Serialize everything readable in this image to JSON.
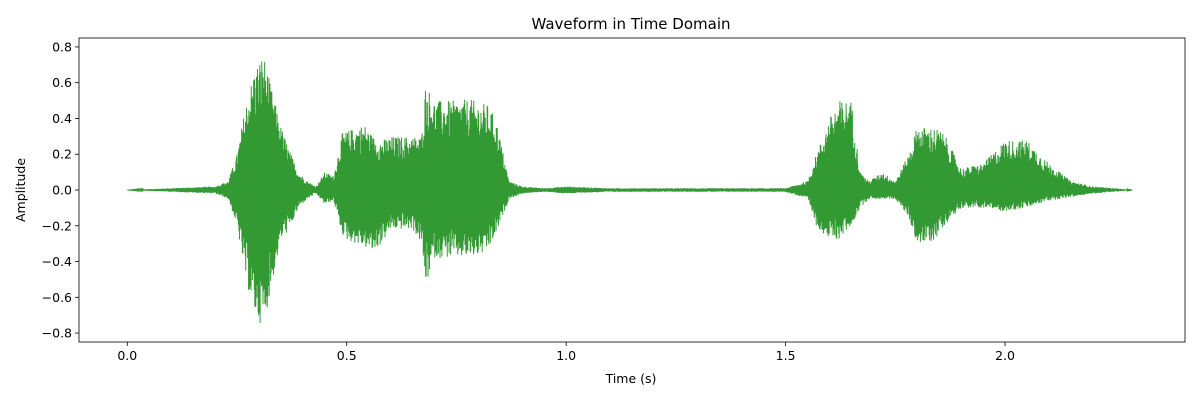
{
  "chart_data": {
    "type": "line",
    "title": "Waveform in Time Domain",
    "xlabel": "Time (s)",
    "ylabel": "Amplitude",
    "xlim": [
      -0.11,
      2.41
    ],
    "ylim": [
      -0.85,
      0.85
    ],
    "x_ticks": [
      0.0,
      0.5,
      1.0,
      1.5,
      2.0
    ],
    "x_tick_labels": [
      "0.0",
      "0.5",
      "1.0",
      "1.5",
      "2.0"
    ],
    "y_ticks": [
      -0.8,
      -0.6,
      -0.4,
      -0.2,
      0.0,
      0.2,
      0.4,
      0.6,
      0.8
    ],
    "y_tick_labels": [
      "−0.8",
      "−0.6",
      "−0.4",
      "−0.2",
      "0.0",
      "0.2",
      "0.4",
      "0.6",
      "0.8"
    ],
    "grid": false,
    "legend": "none",
    "line_color": "#339933",
    "series": [
      {
        "x": [
          0.0,
          0.1,
          0.2,
          0.23,
          0.25,
          0.27,
          0.29,
          0.31,
          0.33,
          0.35,
          0.37,
          0.39,
          0.41,
          0.43,
          0.45,
          0.47,
          0.49,
          0.5,
          0.52,
          0.54,
          0.56,
          0.58,
          0.6,
          0.62,
          0.65,
          0.67,
          0.68,
          0.7,
          0.72,
          0.75,
          0.78,
          0.8,
          0.82,
          0.84,
          0.87,
          0.9,
          0.95,
          1.0,
          1.1,
          1.2,
          1.3,
          1.4,
          1.5,
          1.55,
          1.57,
          1.6,
          1.62,
          1.65,
          1.67,
          1.69,
          1.72,
          1.75,
          1.78,
          1.8,
          1.82,
          1.84,
          1.86,
          1.9,
          1.95,
          2.0,
          2.05,
          2.1,
          2.15,
          2.2,
          2.25,
          2.29
        ],
        "envelope_max": [
          0.0,
          0.01,
          0.02,
          0.05,
          0.2,
          0.48,
          0.68,
          0.77,
          0.55,
          0.36,
          0.22,
          0.1,
          0.05,
          0.02,
          0.1,
          0.08,
          0.32,
          0.33,
          0.35,
          0.37,
          0.3,
          0.28,
          0.3,
          0.3,
          0.3,
          0.3,
          0.6,
          0.5,
          0.5,
          0.5,
          0.51,
          0.49,
          0.48,
          0.4,
          0.05,
          0.02,
          0.01,
          0.02,
          0.01,
          0.01,
          0.01,
          0.01,
          0.01,
          0.05,
          0.2,
          0.4,
          0.5,
          0.5,
          0.1,
          0.05,
          0.1,
          0.05,
          0.2,
          0.36,
          0.35,
          0.35,
          0.32,
          0.12,
          0.15,
          0.28,
          0.28,
          0.15,
          0.05,
          0.02,
          0.01,
          0.0
        ],
        "envelope_min": [
          0.0,
          -0.01,
          -0.02,
          -0.05,
          -0.2,
          -0.5,
          -0.7,
          -0.77,
          -0.52,
          -0.28,
          -0.22,
          -0.1,
          -0.05,
          -0.02,
          -0.08,
          -0.06,
          -0.25,
          -0.28,
          -0.3,
          -0.32,
          -0.35,
          -0.3,
          -0.22,
          -0.22,
          -0.22,
          -0.3,
          -0.54,
          -0.38,
          -0.38,
          -0.38,
          -0.38,
          -0.37,
          -0.35,
          -0.25,
          -0.05,
          -0.02,
          -0.01,
          -0.02,
          -0.01,
          -0.01,
          -0.01,
          -0.01,
          -0.01,
          -0.05,
          -0.2,
          -0.28,
          -0.28,
          -0.2,
          -0.1,
          -0.05,
          -0.05,
          -0.05,
          -0.15,
          -0.3,
          -0.3,
          -0.28,
          -0.2,
          -0.1,
          -0.1,
          -0.12,
          -0.1,
          -0.06,
          -0.04,
          -0.02,
          -0.01,
          0.0
        ]
      }
    ]
  }
}
